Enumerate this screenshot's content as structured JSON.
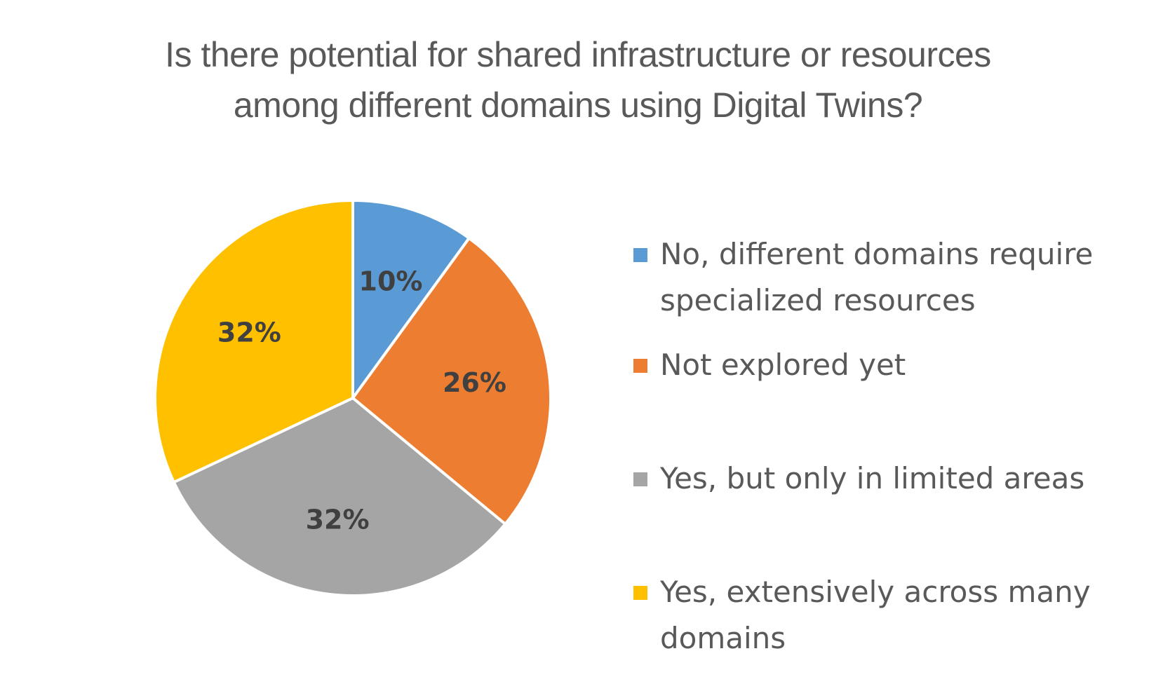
{
  "chart_data": {
    "type": "pie",
    "title_lines": [
      "Is there potential for shared infrastructure or resources",
      "among different domains using Digital Twins?"
    ],
    "categories": [
      "No, different domains require specialized resources",
      "Not explored yet",
      "Yes, but only in limited areas",
      "Yes, extensively across many domains"
    ],
    "legend_lines": [
      [
        "No, different domains require",
        "specialized resources"
      ],
      [
        "Not explored yet"
      ],
      [
        "Yes, but only in limited areas"
      ],
      [
        "Yes, extensively across many",
        "domains"
      ]
    ],
    "values": [
      10,
      26,
      32,
      32
    ],
    "data_labels": [
      "10%",
      "26%",
      "32%",
      "32%"
    ],
    "colors": [
      "#5B9BD5",
      "#ED7D31",
      "#A5A5A5",
      "#FFC000"
    ],
    "start_angle": "12 o'clock",
    "direction": "clockwise",
    "legend_position": "right"
  }
}
